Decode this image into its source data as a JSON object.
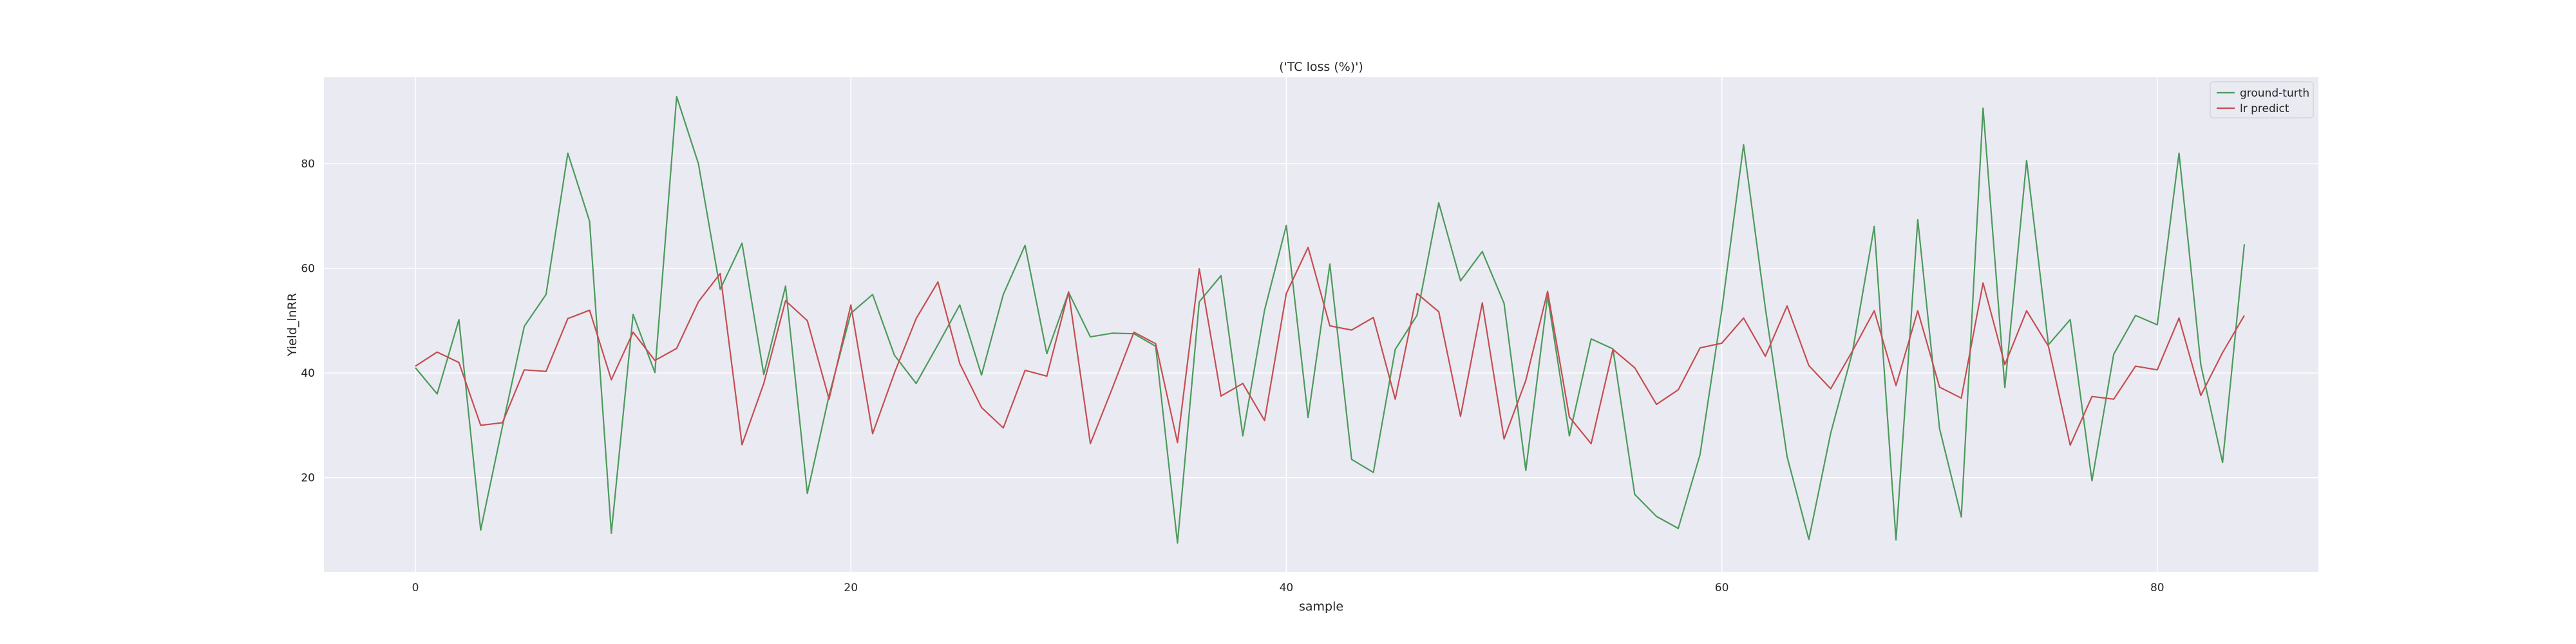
{
  "chart_data": {
    "type": "line",
    "title": "('TC loss (%)')",
    "xlabel": "sample",
    "ylabel": "Yield_lnRR",
    "xlim": [
      -4.2,
      87.4
    ],
    "ylim": [
      2.0,
      96.5
    ],
    "xticks": [
      0,
      20,
      40,
      60,
      80
    ],
    "yticks": [
      20,
      40,
      60,
      80
    ],
    "grid": true,
    "legend_position": "top-right",
    "background": "#eaeaf2",
    "series": [
      {
        "name": "ground-turth",
        "color": "#4c9a5c",
        "values": [
          41.0,
          36.0,
          50.2,
          10.0,
          29.8,
          48.9,
          55.0,
          82.0,
          69.0,
          9.4,
          51.2,
          40.1,
          92.8,
          80.0,
          56.0,
          64.8,
          39.7,
          56.6,
          17.0,
          35.7,
          51.4,
          55.0,
          43.4,
          38.0,
          45.4,
          53.0,
          39.6,
          55.0,
          64.4,
          43.7,
          55.4,
          46.9,
          47.6,
          47.5,
          45.1,
          7.5,
          53.6,
          58.6,
          28.0,
          52.0,
          68.2,
          31.5,
          60.8,
          23.5,
          21.0,
          44.5,
          51.0,
          72.5,
          57.6,
          63.2,
          53.3,
          21.4,
          54.7,
          28.0,
          46.5,
          44.6,
          16.8,
          12.6,
          10.3,
          24.4,
          52.0,
          83.6,
          52.4,
          24.0,
          8.2,
          28.5,
          44.0,
          68.0,
          8.1,
          69.3,
          29.4,
          12.5,
          90.6,
          37.2,
          80.6,
          45.4,
          50.2,
          19.4,
          43.6,
          51.0,
          49.2,
          82.0,
          41.6,
          22.9,
          64.6
        ]
      },
      {
        "name": "lr predict",
        "color": "#c44e52",
        "values": [
          41.3,
          44.0,
          42.0,
          30.0,
          30.5,
          40.6,
          40.3,
          50.4,
          52.0,
          38.7,
          47.8,
          42.4,
          44.7,
          53.6,
          59.0,
          26.3,
          38.0,
          53.8,
          50.0,
          35.0,
          53.0,
          28.4,
          40.0,
          50.4,
          57.4,
          41.8,
          33.4,
          29.5,
          40.5,
          39.4,
          55.5,
          26.5,
          37.0,
          47.8,
          45.6,
          26.7,
          59.9,
          35.6,
          38.0,
          30.9,
          55.2,
          64.0,
          49.0,
          48.2,
          50.6,
          35.0,
          55.2,
          51.7,
          31.7,
          53.4,
          27.4,
          38.6,
          55.6,
          31.6,
          26.5,
          44.5,
          41.0,
          34.0,
          36.8,
          44.8,
          45.7,
          50.5,
          43.2,
          52.8,
          41.4,
          37.0,
          44.2,
          51.9,
          37.6,
          51.9,
          37.3,
          35.2,
          57.2,
          41.6,
          51.9,
          45.1,
          26.2,
          35.5,
          35.0,
          41.3,
          40.6,
          50.5,
          35.7,
          43.9,
          51.0
        ]
      }
    ]
  }
}
